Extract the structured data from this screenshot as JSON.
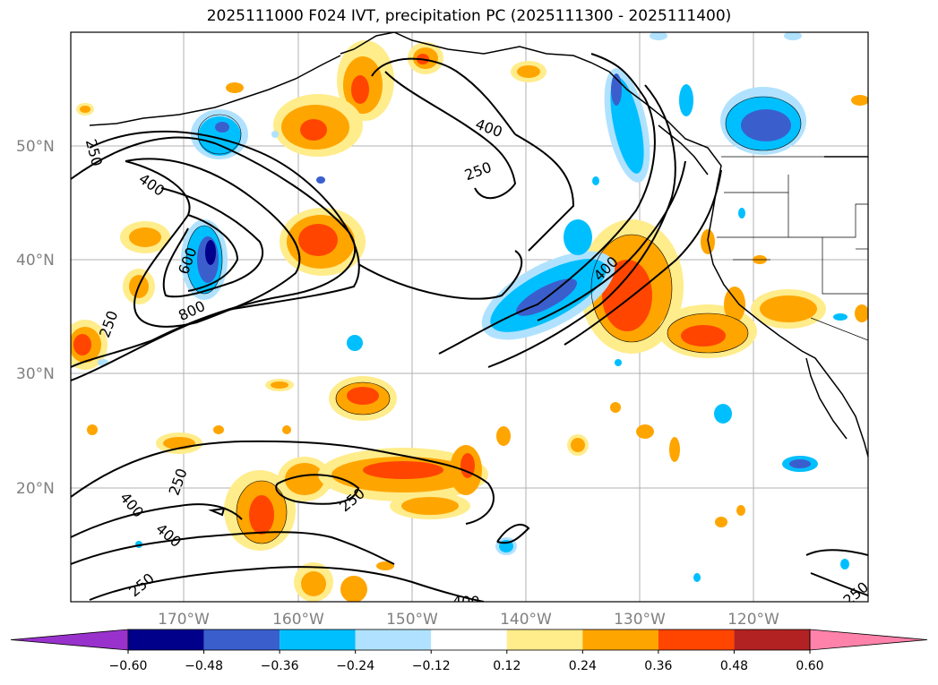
{
  "title": "2025111000 F024 IVT, precipitation PC (2025111300 - 2025111400)",
  "lat_labels": [
    "50°N",
    "40°N",
    "30°N",
    "20°N"
  ],
  "lon_labels": [
    "170°W",
    "160°W",
    "150°W",
    "140°W",
    "130°W",
    "120°W"
  ],
  "colorbar": {
    "ticks": [
      "−0.60",
      "−0.48",
      "−0.36",
      "−0.24",
      "−0.12",
      "0.12",
      "0.24",
      "0.36",
      "0.48",
      "0.60"
    ],
    "colors": [
      "#9932cc",
      "#00008b",
      "#3a5fcd",
      "#00bfff",
      "#b0e2ff",
      "#ffffff",
      "#ffec8b",
      "#ffa500",
      "#ff4500",
      "#b22222",
      "#ff82ab"
    ]
  },
  "contour_labels": [
    "250",
    "400",
    "600",
    "800",
    "250",
    "400",
    "250",
    "400",
    "250",
    "400",
    "250",
    "250",
    "400",
    "250",
    "400",
    "250"
  ]
}
